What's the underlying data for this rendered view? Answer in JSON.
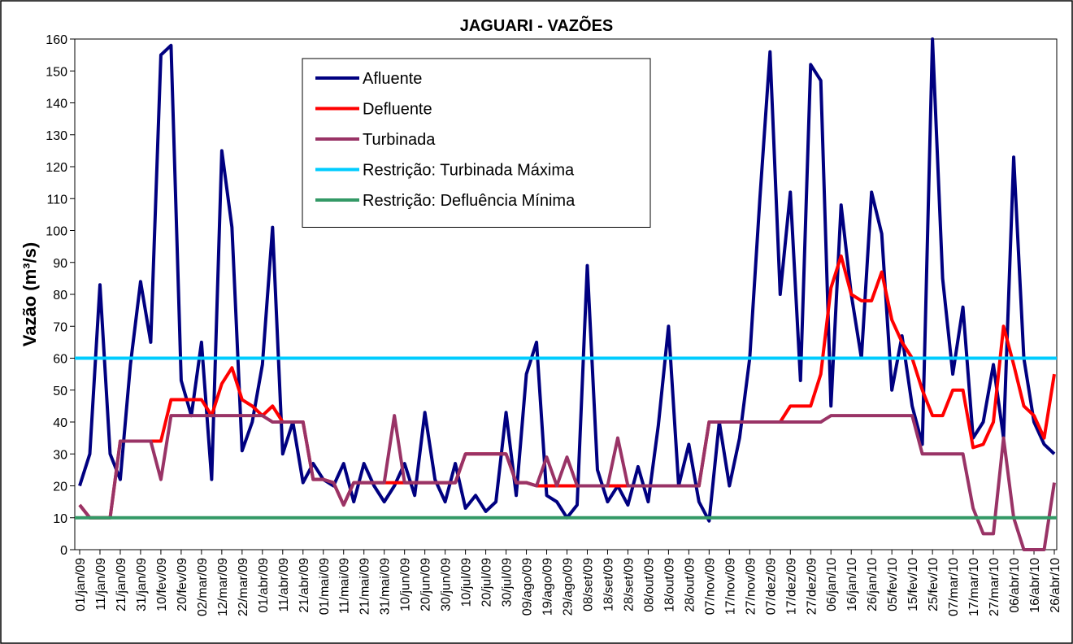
{
  "chart_data": {
    "type": "line",
    "title": "JAGUARI - VAZÕES",
    "y_label": "Vazão (m³/s)",
    "categories": [
      "01/jan/09",
      null,
      "11/jan/09",
      null,
      "21/jan/09",
      null,
      "31/jan/09",
      null,
      "10/fev/09",
      null,
      "20/fev/09",
      null,
      "02/mar/09",
      null,
      "12/mar/09",
      null,
      "22/mar/09",
      null,
      "01/abr/09",
      null,
      "11/abr/09",
      null,
      "21/abr/09",
      null,
      "01/mai/09",
      null,
      "11/mai/09",
      null,
      "21/mai/09",
      null,
      "31/mai/09",
      null,
      "10/jun/09",
      null,
      "20/jun/09",
      null,
      "30/jun/09",
      null,
      "10/jul/09",
      null,
      "20/jul/09",
      null,
      "30/jul/09",
      null,
      "09/ago/09",
      null,
      "19/ago/09",
      null,
      "29/ago/09",
      null,
      "08/set/09",
      null,
      "18/set/09",
      null,
      "28/set/09",
      null,
      "08/out/09",
      null,
      "18/out/09",
      null,
      "28/out/09",
      null,
      "07/nov/09",
      null,
      "17/nov/09",
      null,
      "27/nov/09",
      null,
      "07/dez/09",
      null,
      "17/dez/09",
      null,
      "27/dez/09",
      null,
      "06/jan/10",
      null,
      "16/jan/10",
      null,
      "26/jan/10",
      null,
      "05/fev/10",
      null,
      "15/fev/10",
      null,
      "25/fev/10",
      null,
      "07/mar/10",
      null,
      "17/mar/10",
      null,
      "27/mar/10",
      null,
      "06/abr/10",
      null,
      "16/abr/10",
      null,
      "26/abr/10"
    ],
    "series": [
      {
        "name": "Afluente",
        "color": "#000080",
        "values": [
          20,
          30,
          83,
          30,
          22,
          58,
          84,
          65,
          155,
          158,
          53,
          42,
          65,
          22,
          125,
          101,
          31,
          40,
          58,
          101,
          30,
          40,
          21,
          27,
          22,
          20,
          27,
          15,
          27,
          20,
          15,
          20,
          27,
          17,
          43,
          22,
          15,
          27,
          13,
          17,
          12,
          15,
          43,
          17,
          55,
          65,
          17,
          15,
          10,
          14,
          89,
          25,
          15,
          20,
          14,
          26,
          15,
          39,
          70,
          20,
          33,
          15,
          9,
          40,
          20,
          35,
          60,
          110,
          156,
          80,
          112,
          53,
          152,
          147,
          45,
          108,
          80,
          60,
          112,
          99,
          50,
          67,
          45,
          33,
          160,
          85,
          55,
          76,
          35,
          40,
          58,
          35,
          123,
          60,
          40,
          33,
          30
        ]
      },
      {
        "name": "Defluente",
        "color": "#ff0000",
        "values": [
          14,
          10,
          10,
          10,
          34,
          34,
          34,
          34,
          34,
          47,
          47,
          47,
          47,
          42,
          52,
          57,
          47,
          45,
          42,
          45,
          40,
          40,
          40,
          22,
          22,
          21,
          14,
          21,
          21,
          21,
          21,
          21,
          21,
          21,
          21,
          21,
          21,
          21,
          30,
          30,
          30,
          30,
          30,
          21,
          21,
          20,
          20,
          20,
          20,
          20,
          20,
          20,
          20,
          20,
          20,
          20,
          20,
          20,
          20,
          20,
          20,
          20,
          40,
          40,
          40,
          40,
          40,
          40,
          40,
          40,
          45,
          45,
          45,
          55,
          82,
          92,
          80,
          78,
          78,
          87,
          72,
          65,
          60,
          50,
          42,
          42,
          50,
          50,
          32,
          33,
          40,
          70,
          58,
          45,
          42,
          35,
          55
        ]
      },
      {
        "name": "Turbinada",
        "color": "#993366",
        "values": [
          14,
          10,
          10,
          10,
          34,
          34,
          34,
          34,
          22,
          42,
          42,
          42,
          42,
          42,
          42,
          42,
          42,
          42,
          42,
          40,
          40,
          40,
          40,
          22,
          22,
          21,
          14,
          21,
          21,
          21,
          21,
          42,
          21,
          21,
          21,
          21,
          21,
          21,
          30,
          30,
          30,
          30,
          30,
          21,
          21,
          20,
          29,
          20,
          29,
          20,
          20,
          20,
          20,
          35,
          20,
          20,
          20,
          20,
          20,
          20,
          20,
          20,
          40,
          40,
          40,
          40,
          40,
          40,
          40,
          40,
          40,
          40,
          40,
          40,
          42,
          42,
          42,
          42,
          42,
          42,
          42,
          42,
          42,
          30,
          30,
          30,
          30,
          30,
          13,
          5,
          5,
          35,
          10,
          0,
          0,
          0,
          21
        ]
      }
    ],
    "reference_lines": [
      {
        "name": "Restrição: Turbinada Máxima",
        "color": "#00ccff",
        "value": 60
      },
      {
        "name": "Restrição: Defluência Mínima",
        "color": "#339966",
        "value": 10
      }
    ],
    "ylim": [
      0,
      160
    ],
    "yticks": [
      0,
      10,
      20,
      30,
      40,
      50,
      60,
      70,
      80,
      90,
      100,
      110,
      120,
      130,
      140,
      150,
      160
    ],
    "grid": false
  }
}
